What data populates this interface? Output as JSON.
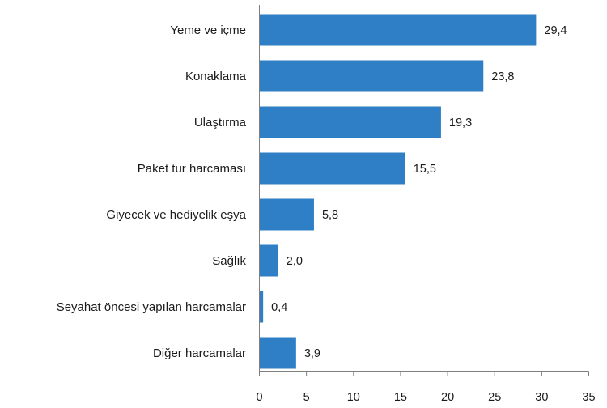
{
  "chart_data": {
    "type": "bar",
    "orientation": "horizontal",
    "categories": [
      "Yeme ve içme",
      "Konaklama",
      "Ulaştırma",
      "Paket tur harcaması",
      "Giyecek ve hediyelik eşya",
      "Sağlık",
      "Seyahat öncesi yapılan harcamalar",
      "Diğer harcamalar"
    ],
    "values": [
      29.4,
      23.8,
      19.3,
      15.5,
      5.8,
      2.0,
      0.4,
      3.9
    ],
    "value_labels": [
      "29,4",
      "23,8",
      "19,3",
      "15,5",
      "5,8",
      "2,0",
      "0,4",
      "3,9"
    ],
    "xlim": [
      0,
      35
    ],
    "xticks": [
      0,
      5,
      10,
      15,
      20,
      25,
      30,
      35
    ],
    "xtick_labels": [
      "0",
      "5",
      "10",
      "15",
      "20",
      "25",
      "30",
      "35"
    ],
    "title": "",
    "xlabel": "",
    "ylabel": "",
    "grid": false,
    "legend": "none",
    "bar_color": "#2e7fc6"
  }
}
